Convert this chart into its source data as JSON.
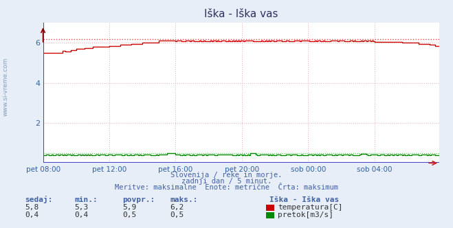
{
  "title": "Iška - Iška vas",
  "fig_bg_color": "#e8eef8",
  "plot_bg_color": "#ffffff",
  "outer_bg_color": "#d0dcea",
  "grid_color": "#e8b8c0",
  "grid_style": ":",
  "border_color": "#5050cc",
  "title_color": "#303060",
  "text_color": "#4060a0",
  "xticklabels": [
    "pet 08:00",
    "pet 12:00",
    "pet 16:00",
    "pet 20:00",
    "sob 00:00",
    "sob 04:00"
  ],
  "xtick_positions": [
    0,
    48,
    96,
    144,
    192,
    240
  ],
  "ylim": [
    0,
    7.0
  ],
  "yticks": [
    2,
    4,
    6
  ],
  "total_points": 288,
  "temp_color": "#cc0000",
  "temp_max_color": "#ee4444",
  "flow_color": "#008800",
  "flow_max_color": "#44cc44",
  "border_left_color": "#4444cc",
  "border_bottom_color": "#cc2222",
  "temp_max_line": 6.2,
  "flow_max_line": 0.5,
  "subtitle_lines": [
    "Slovenija / reke in morje.",
    "zadnji dan / 5 minut.",
    "Meritve: maksimalne  Enote: metrične  Črta: maksimum"
  ],
  "table_headers": [
    "sedaj:",
    "min.:",
    "povpr.:",
    "maks.:"
  ],
  "table_row1": [
    "5,8",
    "5,3",
    "5,9",
    "6,2"
  ],
  "table_row2": [
    "0,4",
    "0,4",
    "0,5",
    "0,5"
  ],
  "legend_label": "Iška - Iška vas",
  "legend_temp": "temperatura[C]",
  "legend_flow": "pretok[m3/s]",
  "watermark": "www.si-vreme.com"
}
